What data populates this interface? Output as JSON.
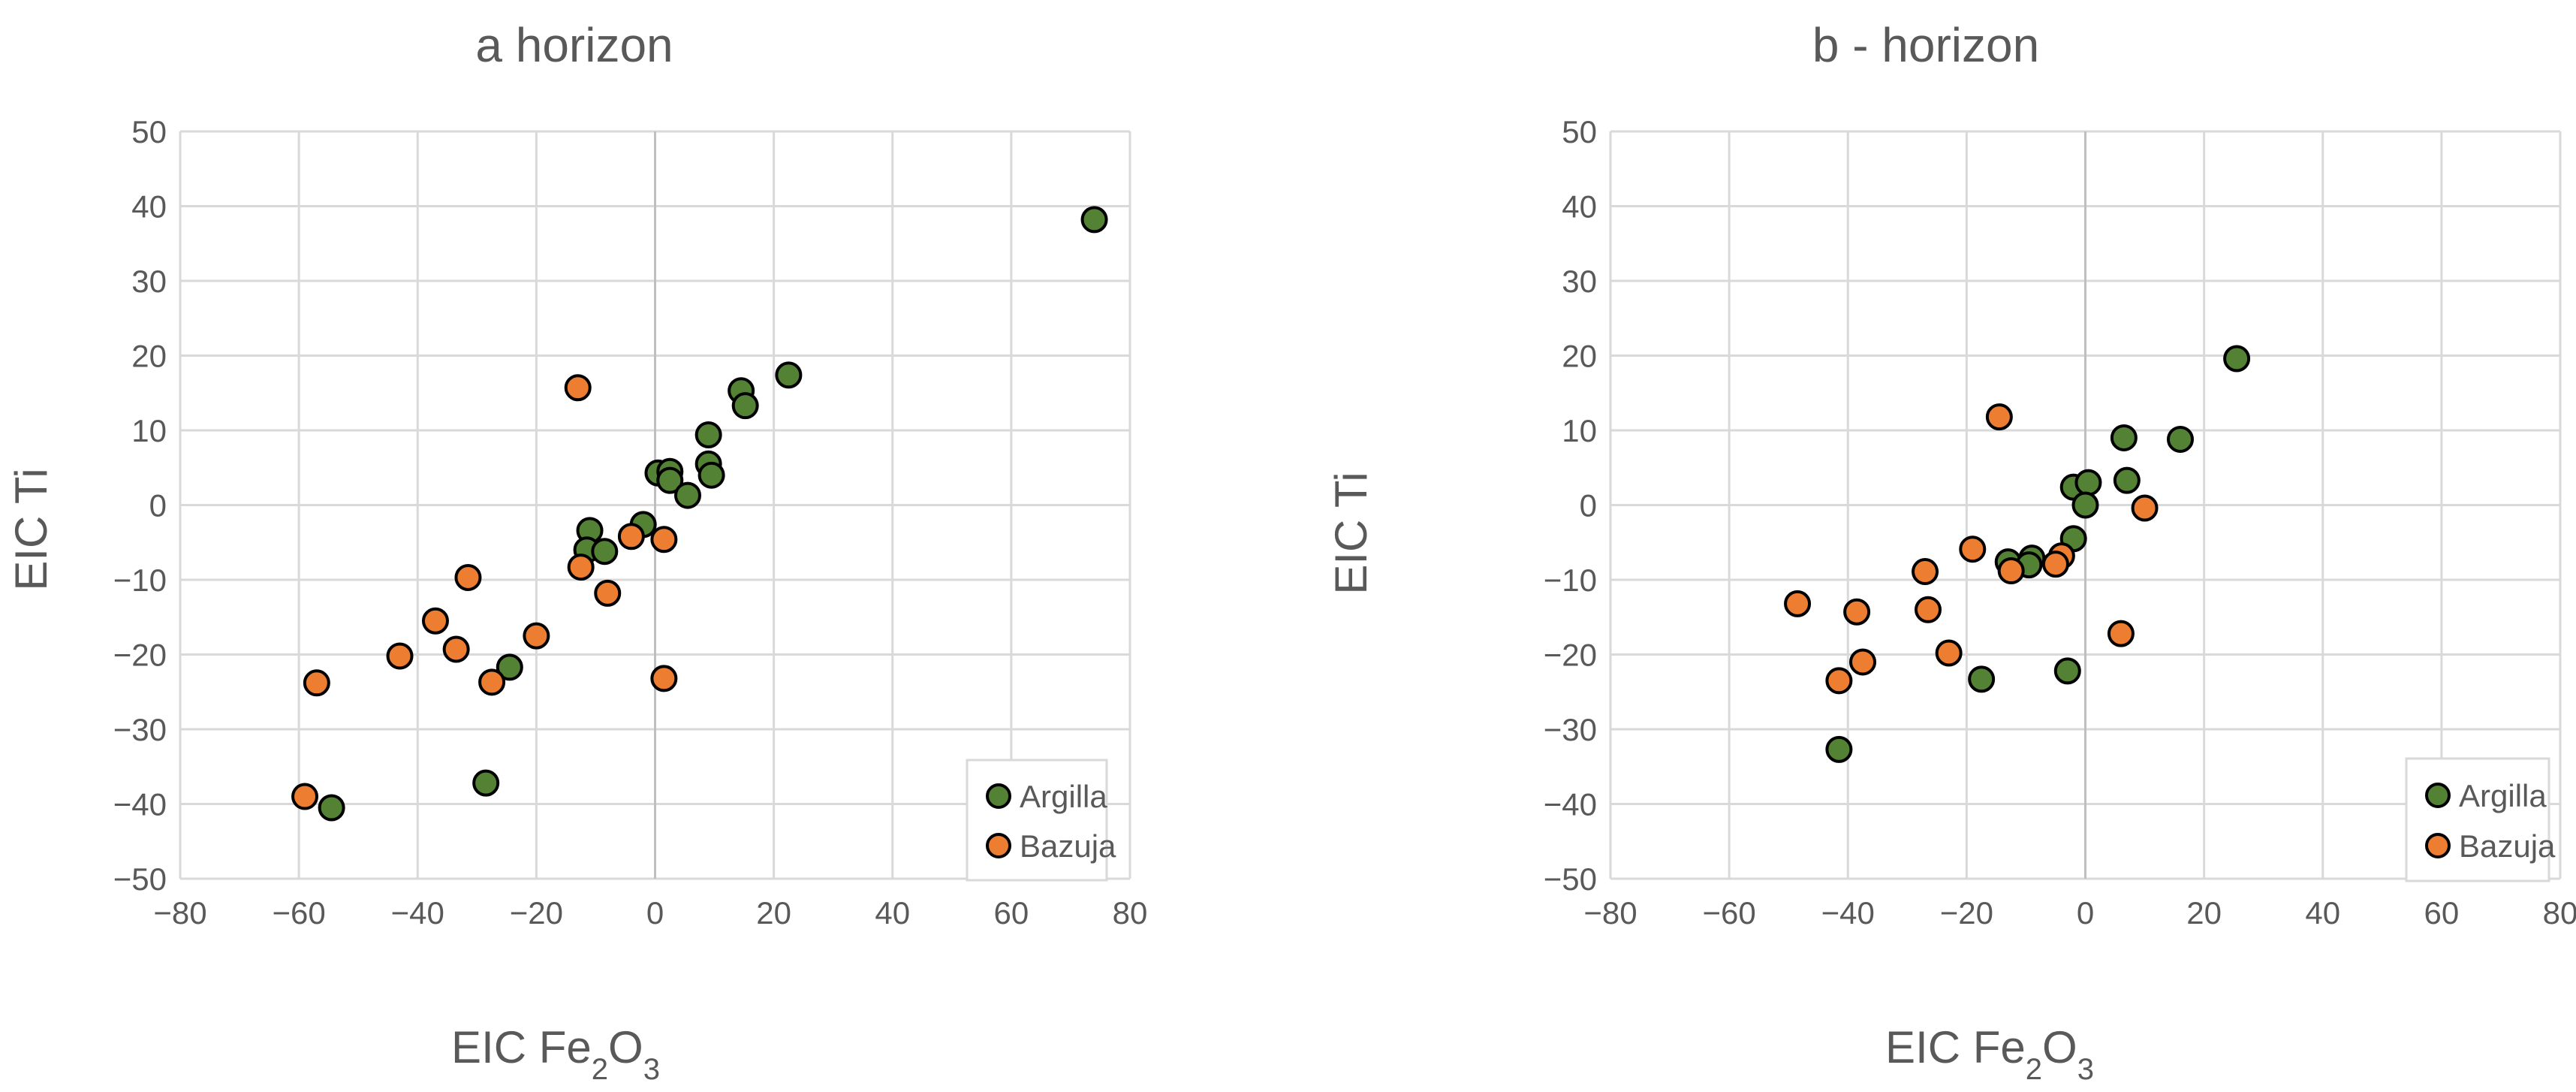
{
  "colors": {
    "argilla": "#548235",
    "bazuja": "#ed7d31",
    "marker_edge": "#000000"
  },
  "chart_data": [
    {
      "type": "scatter",
      "title": "a horizon",
      "xlabel_main": "EIC Fe",
      "xlabel_sub1": "2",
      "xlabel_mid": "O",
      "xlabel_sub2": "3",
      "ylabel": "EIC Ti",
      "xlim": [
        -80,
        80
      ],
      "ylim": [
        -50,
        50
      ],
      "xticks": [
        -80,
        -60,
        -40,
        -20,
        0,
        20,
        40,
        60,
        80
      ],
      "yticks": [
        -50,
        -40,
        -30,
        -20,
        -10,
        0,
        10,
        20,
        30,
        40,
        50
      ],
      "grid": true,
      "legend_position": "bottom-right",
      "series": [
        {
          "name": "Argilla",
          "color": "#548235",
          "points": [
            [
              74,
              38.2
            ],
            [
              22.5,
              17.4
            ],
            [
              14.5,
              15.3
            ],
            [
              15.2,
              13.3
            ],
            [
              9,
              9.4
            ],
            [
              9,
              5.5
            ],
            [
              9.5,
              4
            ],
            [
              0.5,
              4.3
            ],
            [
              2.5,
              4.5
            ],
            [
              2.5,
              3.3
            ],
            [
              5.5,
              1.3
            ],
            [
              -2,
              -2.6
            ],
            [
              -11,
              -3.4
            ],
            [
              -11.5,
              -6
            ],
            [
              -8.5,
              -6.2
            ],
            [
              -24.5,
              -21.7
            ],
            [
              -28.5,
              -37.2
            ],
            [
              -54.5,
              -40.5
            ]
          ]
        },
        {
          "name": "Bazuja",
          "color": "#ed7d31",
          "points": [
            [
              -13,
              15.7
            ],
            [
              -12.5,
              -8.3
            ],
            [
              -31.5,
              -9.7
            ],
            [
              -4,
              -4.2
            ],
            [
              1.5,
              -4.6
            ],
            [
              -8,
              -11.8
            ],
            [
              -37,
              -15.5
            ],
            [
              -43,
              -20.2
            ],
            [
              -33.5,
              -19.3
            ],
            [
              -20,
              -17.5
            ],
            [
              -27.5,
              -23.7
            ],
            [
              1.5,
              -23.2
            ],
            [
              -57,
              -23.8
            ],
            [
              -59,
              -39
            ]
          ]
        }
      ]
    },
    {
      "type": "scatter",
      "title": "b - horizon",
      "xlabel_main": "EIC Fe",
      "xlabel_sub1": "2",
      "xlabel_mid": "O",
      "xlabel_sub2": "3",
      "ylabel": "EIC Ti",
      "xlim": [
        -80,
        80
      ],
      "ylim": [
        -50,
        50
      ],
      "xticks": [
        -80,
        -60,
        -40,
        -20,
        0,
        20,
        40,
        60,
        80
      ],
      "yticks": [
        -50,
        -40,
        -30,
        -20,
        -10,
        0,
        10,
        20,
        30,
        40,
        50
      ],
      "grid": true,
      "legend_position": "bottom-right",
      "series": [
        {
          "name": "Argilla",
          "color": "#548235",
          "points": [
            [
              25.5,
              19.6
            ],
            [
              6.5,
              9
            ],
            [
              16,
              8.8
            ],
            [
              7,
              3.3
            ],
            [
              -2,
              2.4
            ],
            [
              0.5,
              3
            ],
            [
              0,
              0
            ],
            [
              -2,
              -4.5
            ],
            [
              -13,
              -7.6
            ],
            [
              -9,
              -7.1
            ],
            [
              -9.5,
              -8
            ],
            [
              -17.5,
              -23.3
            ],
            [
              -3,
              -22.2
            ],
            [
              -41.5,
              -32.7
            ]
          ]
        },
        {
          "name": "Bazuja",
          "color": "#ed7d31",
          "points": [
            [
              -14.5,
              11.8
            ],
            [
              10,
              -0.4
            ],
            [
              -19,
              -5.9
            ],
            [
              -4,
              -6.8
            ],
            [
              -5,
              -7.9
            ],
            [
              -12.5,
              -8.8
            ],
            [
              -27,
              -8.9
            ],
            [
              -48.5,
              -13.2
            ],
            [
              -38.5,
              -14.3
            ],
            [
              -26.5,
              -14
            ],
            [
              -37.5,
              -21
            ],
            [
              -23,
              -19.8
            ],
            [
              -41.5,
              -23.5
            ],
            [
              6,
              -17.2
            ]
          ]
        }
      ]
    }
  ]
}
